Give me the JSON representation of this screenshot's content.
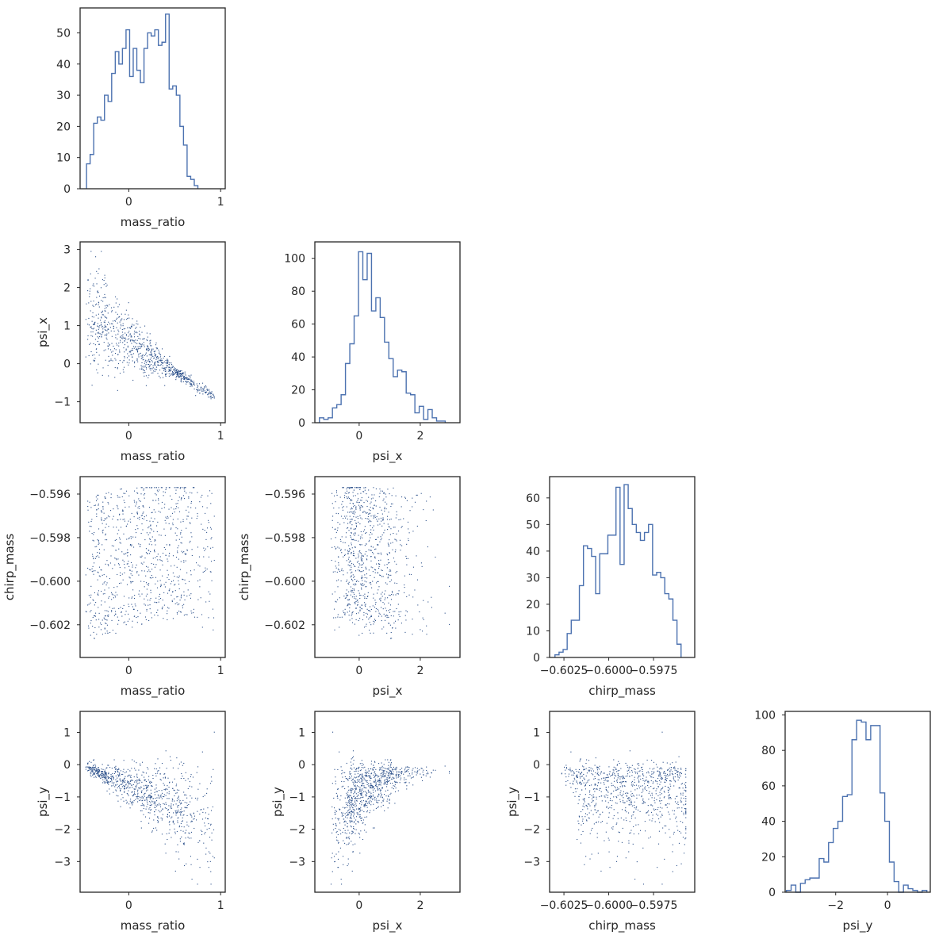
{
  "figure": {
    "type": "corner-plot",
    "variables": [
      "mass_ratio",
      "psi_x",
      "chirp_mass",
      "psi_y"
    ]
  },
  "colors": {
    "line": "#4c72b0",
    "point": "#2a4f8a",
    "spine": "#262626",
    "text": "#262626"
  },
  "chart_data": [
    {
      "id": "hist-mass_ratio",
      "row": 0,
      "col": 0,
      "type": "histogram-step",
      "xlabel": "mass_ratio",
      "ylabel": "",
      "xlim": [
        -0.53,
        1.05
      ],
      "ylim": [
        0,
        58
      ],
      "xticks": [
        {
          "v": 0,
          "l": "0"
        },
        {
          "v": 1,
          "l": "1"
        }
      ],
      "yticks": [
        {
          "v": 0,
          "l": "0"
        },
        {
          "v": 10,
          "l": "10"
        },
        {
          "v": 20,
          "l": "20"
        },
        {
          "v": 30,
          "l": "30"
        },
        {
          "v": 40,
          "l": "40"
        },
        {
          "v": 50,
          "l": "50"
        }
      ],
      "bin_start": -0.46,
      "bin_width": 0.0391,
      "counts": [
        8,
        11,
        21,
        23,
        22,
        30,
        28,
        37,
        44,
        40,
        45,
        51,
        36,
        45,
        38,
        34,
        45,
        50,
        49,
        51,
        46,
        47,
        56,
        32,
        33,
        30,
        20,
        14,
        4,
        3,
        1
      ]
    },
    {
      "id": "scatter-mass_ratio-psi_x",
      "row": 1,
      "col": 0,
      "type": "scatter",
      "xlabel": "mass_ratio",
      "ylabel": "psi_x",
      "xlim": [
        -0.53,
        1.05
      ],
      "ylim": [
        -1.55,
        3.2
      ],
      "xticks": [
        {
          "v": 0,
          "l": "0"
        },
        {
          "v": 1,
          "l": "1"
        }
      ],
      "yticks": [
        {
          "v": -1,
          "l": "−1"
        },
        {
          "v": 0,
          "l": "0"
        },
        {
          "v": 1,
          "l": "1"
        },
        {
          "v": 2,
          "l": "2"
        },
        {
          "v": 3,
          "l": "3"
        }
      ],
      "points": {
        "x": "mass_ratio",
        "y": "psi_x",
        "n": 900,
        "seed": 11
      }
    },
    {
      "id": "hist-psi_x",
      "row": 1,
      "col": 1,
      "type": "histogram-step",
      "xlabel": "psi_x",
      "ylabel": "",
      "xlim": [
        -1.45,
        3.3
      ],
      "ylim": [
        0,
        110
      ],
      "xticks": [
        {
          "v": 0,
          "l": "0"
        },
        {
          "v": 2,
          "l": "2"
        }
      ],
      "yticks": [
        {
          "v": 0,
          "l": "0"
        },
        {
          "v": 20,
          "l": "20"
        },
        {
          "v": 40,
          "l": "40"
        },
        {
          "v": 60,
          "l": "60"
        },
        {
          "v": 80,
          "l": "80"
        },
        {
          "v": 100,
          "l": "100"
        }
      ],
      "bin_start": -1.3,
      "bin_width": 0.142,
      "counts": [
        3,
        2,
        3,
        9,
        11,
        17,
        36,
        48,
        65,
        104,
        87,
        103,
        68,
        76,
        64,
        49,
        39,
        28,
        32,
        31,
        18,
        17,
        6,
        10,
        2,
        8,
        3,
        1,
        1
      ]
    },
    {
      "id": "scatter-mass_ratio-chirp_mass",
      "row": 2,
      "col": 0,
      "type": "scatter",
      "xlabel": "mass_ratio",
      "ylabel": "chirp_mass",
      "xlim": [
        -0.53,
        1.05
      ],
      "ylim": [
        -0.6035,
        -0.5952
      ],
      "xticks": [
        {
          "v": 0,
          "l": "0"
        },
        {
          "v": 1,
          "l": "1"
        }
      ],
      "yticks": [
        {
          "v": -0.602,
          "l": "−0.602"
        },
        {
          "v": -0.6,
          "l": "−0.600"
        },
        {
          "v": -0.598,
          "l": "−0.598"
        },
        {
          "v": -0.596,
          "l": "−0.596"
        }
      ],
      "points": {
        "x": "mass_ratio",
        "y": "chirp_mass",
        "n": 900,
        "seed": 11
      }
    },
    {
      "id": "scatter-psi_x-chirp_mass",
      "row": 2,
      "col": 1,
      "type": "scatter",
      "xlabel": "psi_x",
      "ylabel": "chirp_mass",
      "xlim": [
        -1.45,
        3.3
      ],
      "ylim": [
        -0.6035,
        -0.5952
      ],
      "xticks": [
        {
          "v": 0,
          "l": "0"
        },
        {
          "v": 2,
          "l": "2"
        }
      ],
      "yticks": [
        {
          "v": -0.602,
          "l": "−0.602"
        },
        {
          "v": -0.6,
          "l": "−0.600"
        },
        {
          "v": -0.598,
          "l": "−0.598"
        },
        {
          "v": -0.596,
          "l": "−0.596"
        }
      ],
      "points": {
        "x": "psi_x",
        "y": "chirp_mass",
        "n": 900,
        "seed": 11
      }
    },
    {
      "id": "hist-chirp_mass",
      "row": 2,
      "col": 2,
      "type": "histogram-step",
      "xlabel": "chirp_mass",
      "ylabel": "",
      "xlim": [
        -0.6033,
        -0.5952
      ],
      "ylim": [
        0,
        68
      ],
      "xticks": [
        {
          "v": -0.6025,
          "l": "−0.6025"
        },
        {
          "v": -0.6,
          "l": "−0.6000"
        },
        {
          "v": -0.5975,
          "l": "−0.5975"
        }
      ],
      "yticks": [
        {
          "v": 0,
          "l": "0"
        },
        {
          "v": 10,
          "l": "10"
        },
        {
          "v": 20,
          "l": "20"
        },
        {
          "v": 30,
          "l": "30"
        },
        {
          "v": 40,
          "l": "40"
        },
        {
          "v": 50,
          "l": "50"
        },
        {
          "v": 60,
          "l": "60"
        }
      ],
      "bin_start": -0.603,
      "bin_width": 0.000227,
      "counts": [
        1,
        2,
        3,
        9,
        14,
        14,
        27,
        42,
        41,
        38,
        24,
        39,
        39,
        46,
        46,
        64,
        35,
        65,
        56,
        50,
        47,
        44,
        47,
        50,
        31,
        32,
        30,
        24,
        22,
        14,
        5
      ]
    },
    {
      "id": "scatter-mass_ratio-psi_y",
      "row": 3,
      "col": 0,
      "type": "scatter",
      "xlabel": "mass_ratio",
      "ylabel": "psi_y",
      "xlim": [
        -0.53,
        1.05
      ],
      "ylim": [
        -3.95,
        1.65
      ],
      "xticks": [
        {
          "v": 0,
          "l": "0"
        },
        {
          "v": 1,
          "l": "1"
        }
      ],
      "yticks": [
        {
          "v": -3,
          "l": "−3"
        },
        {
          "v": -2,
          "l": "−2"
        },
        {
          "v": -1,
          "l": "−1"
        },
        {
          "v": 0,
          "l": "0"
        },
        {
          "v": 1,
          "l": "1"
        }
      ],
      "points": {
        "x": "mass_ratio",
        "y": "psi_y",
        "n": 900,
        "seed": 11
      }
    },
    {
      "id": "scatter-psi_x-psi_y",
      "row": 3,
      "col": 1,
      "type": "scatter",
      "xlabel": "psi_x",
      "ylabel": "psi_y",
      "xlim": [
        -1.45,
        3.3
      ],
      "ylim": [
        -3.95,
        1.65
      ],
      "xticks": [
        {
          "v": 0,
          "l": "0"
        },
        {
          "v": 2,
          "l": "2"
        }
      ],
      "yticks": [
        {
          "v": -3,
          "l": "−3"
        },
        {
          "v": -2,
          "l": "−2"
        },
        {
          "v": -1,
          "l": "−1"
        },
        {
          "v": 0,
          "l": "0"
        },
        {
          "v": 1,
          "l": "1"
        }
      ],
      "points": {
        "x": "psi_x",
        "y": "psi_y",
        "n": 900,
        "seed": 11
      }
    },
    {
      "id": "scatter-chirp_mass-psi_y",
      "row": 3,
      "col": 2,
      "type": "scatter",
      "xlabel": "chirp_mass",
      "ylabel": "psi_y",
      "xlim": [
        -0.6033,
        -0.5952
      ],
      "ylim": [
        -3.95,
        1.65
      ],
      "xticks": [
        {
          "v": -0.6025,
          "l": "−0.6025"
        },
        {
          "v": -0.6,
          "l": "−0.6000"
        },
        {
          "v": -0.5975,
          "l": "−0.5975"
        }
      ],
      "yticks": [
        {
          "v": -3,
          "l": "−3"
        },
        {
          "v": -2,
          "l": "−2"
        },
        {
          "v": -1,
          "l": "−1"
        },
        {
          "v": 0,
          "l": "0"
        },
        {
          "v": 1,
          "l": "1"
        }
      ],
      "points": {
        "x": "chirp_mass",
        "y": "psi_y",
        "n": 900,
        "seed": 11
      }
    },
    {
      "id": "hist-psi_y",
      "row": 3,
      "col": 3,
      "type": "histogram-step",
      "xlabel": "psi_y",
      "ylabel": "",
      "xlim": [
        -3.95,
        1.65
      ],
      "ylim": [
        0,
        102
      ],
      "xticks": [
        {
          "v": -2,
          "l": "−2"
        },
        {
          "v": 0,
          "l": "0"
        }
      ],
      "yticks": [
        {
          "v": 0,
          "l": "0"
        },
        {
          "v": 20,
          "l": "20"
        },
        {
          "v": 40,
          "l": "40"
        },
        {
          "v": 60,
          "l": "60"
        },
        {
          "v": 80,
          "l": "80"
        },
        {
          "v": 100,
          "l": "100"
        }
      ],
      "bin_start": -3.9,
      "bin_width": 0.1806,
      "counts": [
        1,
        4,
        0,
        5,
        7,
        8,
        8,
        19,
        17,
        28,
        36,
        40,
        54,
        55,
        86,
        97,
        96,
        86,
        94,
        94,
        56,
        40,
        17,
        6,
        0,
        4,
        2,
        1,
        0,
        1
      ]
    }
  ]
}
